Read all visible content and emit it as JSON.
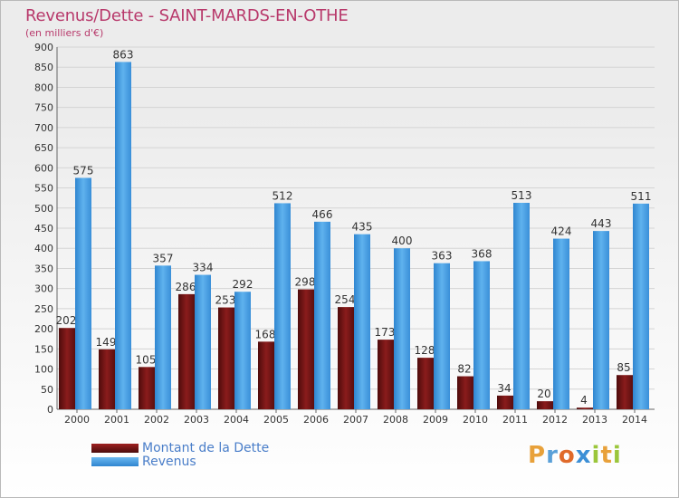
{
  "title": "Revenus/Dette - SAINT-MARDS-EN-OTHE",
  "subtitle": "(en milliers d'€)",
  "chart_data": {
    "type": "bar",
    "categories": [
      "2000",
      "2001",
      "2002",
      "2003",
      "2004",
      "2005",
      "2006",
      "2007",
      "2008",
      "2009",
      "2010",
      "2011",
      "2012",
      "2013",
      "2014"
    ],
    "series": [
      {
        "name": "Montant de la Dette",
        "values": [
          202,
          149,
          105,
          286,
          253,
          168,
          298,
          254,
          173,
          128,
          82,
          34,
          20,
          4,
          85
        ],
        "color": "#7a1616"
      },
      {
        "name": "Revenus",
        "values": [
          575,
          863,
          357,
          334,
          292,
          512,
          466,
          435,
          400,
          363,
          368,
          513,
          424,
          443,
          511
        ],
        "color": "#4a9fe0"
      }
    ],
    "ylim": [
      0,
      900
    ],
    "yticks": [
      0,
      50,
      100,
      150,
      200,
      250,
      300,
      350,
      400,
      450,
      500,
      550,
      600,
      650,
      700,
      750,
      800,
      850,
      900
    ],
    "grid": true,
    "legend_position": "bottom-left"
  },
  "legend": {
    "items": [
      {
        "label": "Montant de la Dette",
        "color": "#7a1616"
      },
      {
        "label": "Revenus",
        "color": "#4a9fe0"
      }
    ]
  },
  "logo": {
    "letters": [
      "P",
      "r",
      "o",
      "x",
      "i",
      "t",
      "i"
    ],
    "colors": [
      "#e8a13a",
      "#5aa0d8",
      "#e06a2a",
      "#3c8fd6",
      "#9bc63b",
      "#e8a13a",
      "#9bc63b"
    ]
  }
}
